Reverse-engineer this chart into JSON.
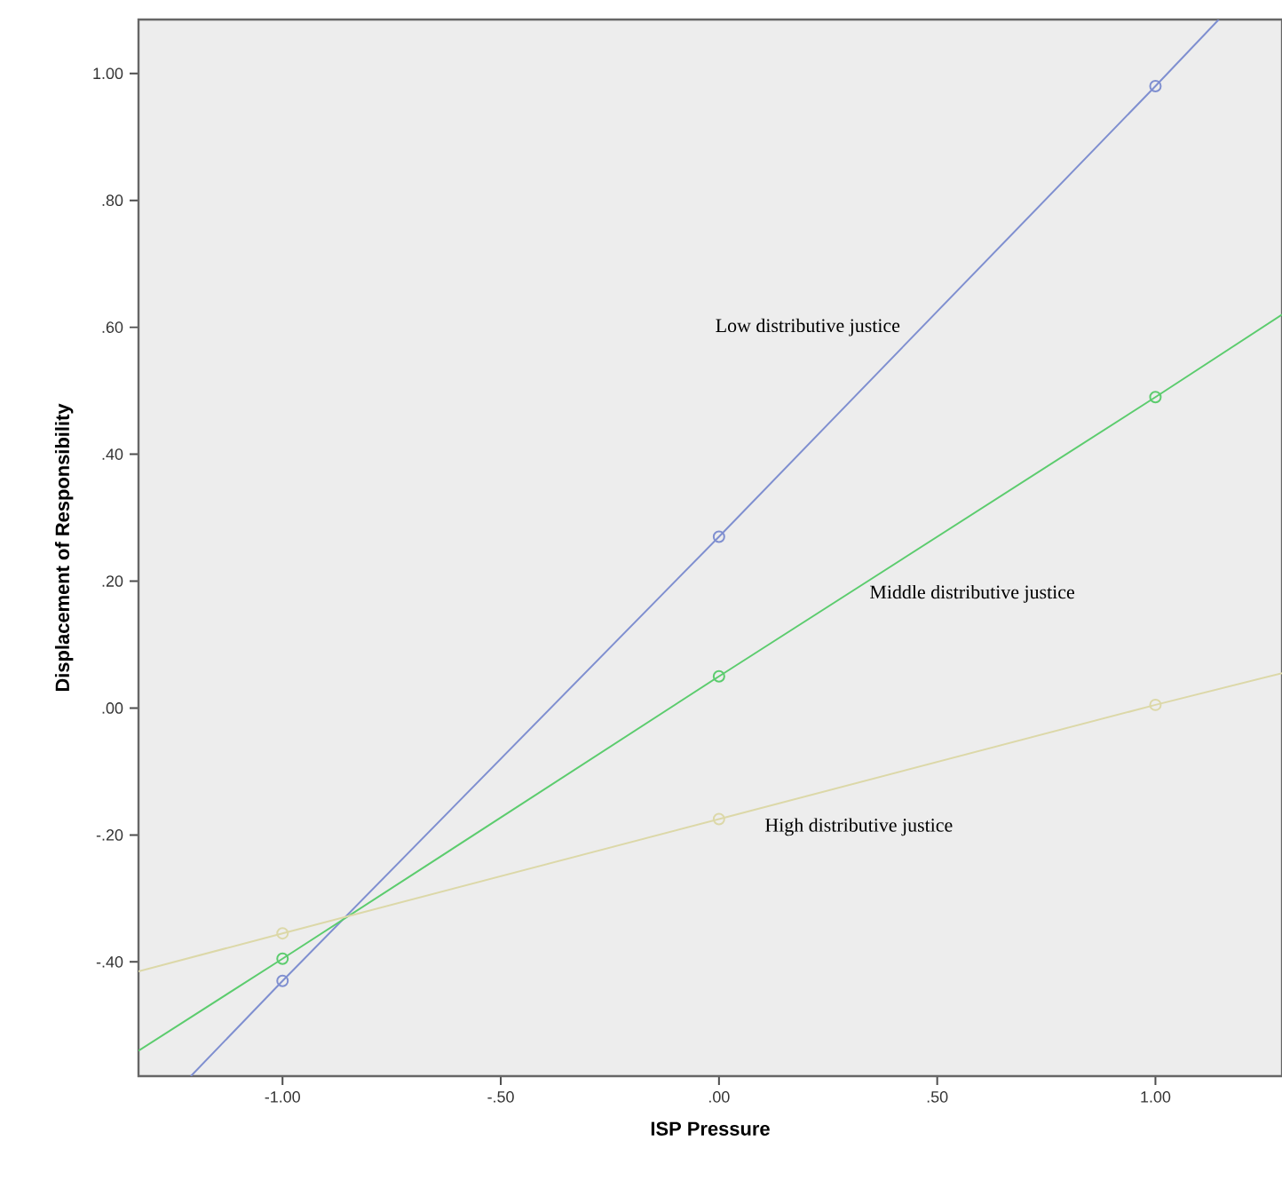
{
  "chart_data": {
    "type": "line",
    "xlabel": "ISP Pressure",
    "ylabel": "Displacement of Responsibility",
    "xlim": [
      -1.33,
      1.29
    ],
    "ylim": [
      -0.58,
      1.085
    ],
    "xticks": [
      {
        "value": -1,
        "label": "-1.00"
      },
      {
        "value": -0.5,
        "label": "-.50"
      },
      {
        "value": 0,
        "label": ".00"
      },
      {
        "value": 0.5,
        "label": ".50"
      },
      {
        "value": 1,
        "label": "1.00"
      }
    ],
    "yticks": [
      {
        "value": -0.4,
        "label": "-.40"
      },
      {
        "value": -0.2,
        "label": "-.20"
      },
      {
        "value": 0,
        "label": ".00"
      },
      {
        "value": 0.2,
        "label": ".20"
      },
      {
        "value": 0.4,
        "label": ".40"
      },
      {
        "value": 0.6,
        "label": ".60"
      },
      {
        "value": 0.8,
        "label": ".80"
      },
      {
        "value": 1,
        "label": "1.00"
      }
    ],
    "series": [
      {
        "name": "Low distributive justice",
        "color": "#7f8fd0",
        "x": [
          -1.21,
          -1,
          0,
          1,
          1.145
        ],
        "values": [
          -0.58,
          -0.43,
          0.27,
          0.98,
          1.085
        ]
      },
      {
        "name": "Middle distributive justice",
        "color": "#5ccc6e",
        "x": [
          -1.33,
          -1,
          0,
          1,
          1.29
        ],
        "values": [
          -0.54,
          -0.395,
          0.05,
          0.49,
          0.62
        ]
      },
      {
        "name": "High distributive justice",
        "color": "#dcd8a8",
        "x": [
          -1.33,
          -1,
          0,
          1,
          1.29
        ],
        "values": [
          -0.415,
          -0.355,
          -0.175,
          0.005,
          0.055
        ]
      },
      {
        "type": "scatter",
        "marker": "circle",
        "color": "#7f8fd0",
        "x": [
          -1,
          0,
          1
        ],
        "values": [
          -0.43,
          0.27,
          0.98
        ]
      },
      {
        "type": "scatter",
        "marker": "circle",
        "color": "#5ccc6e",
        "x": [
          -1,
          0,
          1
        ],
        "values": [
          -0.395,
          0.05,
          0.49
        ]
      },
      {
        "type": "scatter",
        "marker": "circle",
        "color": "#dcd8a8",
        "x": [
          -1,
          0,
          1
        ],
        "values": [
          -0.355,
          -0.175,
          0.005
        ]
      }
    ]
  }
}
